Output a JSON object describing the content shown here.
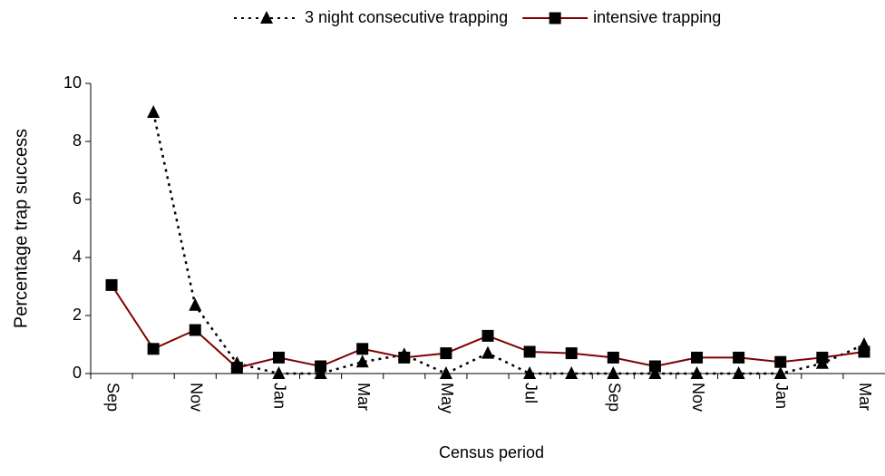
{
  "chart_data": {
    "type": "line",
    "x_label": "Census period",
    "y_label": "Percentage trap success",
    "categories": [
      "Sep",
      null,
      "Nov",
      null,
      "Jan",
      null,
      "Mar",
      null,
      "May",
      null,
      "Jul",
      null,
      "Sep",
      null,
      "Nov",
      null,
      "Jan",
      null,
      "Mar"
    ],
    "series": [
      {
        "name": "3 night consecutive trapping",
        "color": "#000000",
        "marker": "triangle",
        "dash": "dotted",
        "values": [
          null,
          9.0,
          2.35,
          0.35,
          0,
          0,
          0.4,
          0.65,
          0,
          0.7,
          0,
          0,
          0,
          0,
          0,
          0,
          0,
          0.35,
          1.0
        ]
      },
      {
        "name": "intensive trapping",
        "color": "#800000",
        "marker": "square",
        "dash": "solid",
        "values": [
          3.05,
          0.85,
          1.5,
          0.2,
          0.55,
          0.25,
          0.85,
          0.55,
          0.7,
          1.3,
          0.75,
          0.7,
          0.55,
          0.25,
          0.55,
          0.55,
          0.4,
          0.55,
          0.75
        ]
      }
    ],
    "ylim": [
      0,
      10
    ],
    "yticks": [
      0,
      2,
      4,
      6,
      8,
      10
    ],
    "legend": "top"
  }
}
